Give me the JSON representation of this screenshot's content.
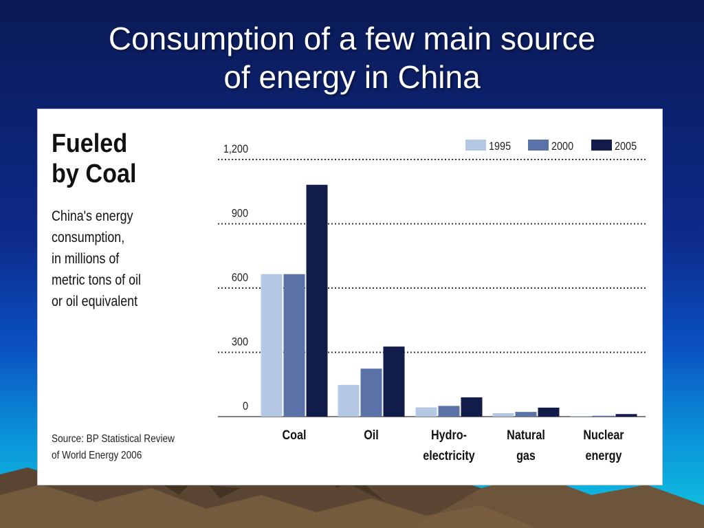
{
  "slide": {
    "title_line1": "Consumption of a few main source",
    "title_line2": "of energy in China"
  },
  "panel": {
    "heading_line1": "Fueled",
    "heading_line2": "by Coal",
    "subtitle_lines": [
      "China's energy",
      "consumption,",
      "in millions of",
      "metric tons of oil",
      "or oil equivalent"
    ],
    "source_line1": "Source: BP Statistical Review",
    "source_line2": "of World Energy 2006"
  },
  "colors": {
    "1995": "#b4c7e3",
    "2000": "#5a72a8",
    "2005": "#111c4a",
    "gridline": "#333333"
  },
  "chart_data": {
    "type": "bar",
    "title": "Fueled by Coal",
    "subtitle": "China's energy consumption, in millions of metric tons of oil or oil equivalent",
    "ylabel": "",
    "xlabel": "",
    "ylim": [
      0,
      1200
    ],
    "yticks": [
      0,
      300,
      600,
      900,
      1200
    ],
    "ytick_labels": [
      "0",
      "300",
      "600",
      "900",
      "1,200"
    ],
    "grid": true,
    "legend_position": "top-right",
    "categories": [
      [
        "Coal"
      ],
      [
        "Oil"
      ],
      [
        "Hydro-",
        "electricity"
      ],
      [
        "Natural",
        "gas"
      ],
      [
        "Nuclear",
        "energy"
      ]
    ],
    "series": [
      {
        "name": "1995",
        "values": [
          665,
          148,
          43,
          16,
          3
        ]
      },
      {
        "name": "2000",
        "values": [
          665,
          224,
          50,
          22,
          4
        ]
      },
      {
        "name": "2005",
        "values": [
          1082,
          327,
          90,
          42,
          12
        ]
      }
    ]
  }
}
